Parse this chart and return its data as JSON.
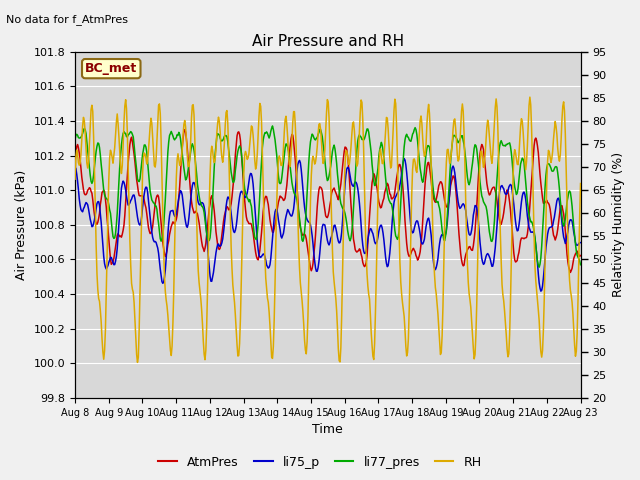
{
  "title": "Air Pressure and RH",
  "top_left_text": "No data for f_AtmPres",
  "box_label": "BC_met",
  "xlabel": "Time",
  "ylabel_left": "Air Pressure (kPa)",
  "ylabel_right": "Relativity Humidity (%)",
  "ylim_left": [
    99.8,
    101.8
  ],
  "ylim_right": [
    20,
    95
  ],
  "yticks_left": [
    99.8,
    100.0,
    100.2,
    100.4,
    100.6,
    100.8,
    101.0,
    101.2,
    101.4,
    101.6,
    101.8
  ],
  "yticks_right": [
    20,
    25,
    30,
    35,
    40,
    45,
    50,
    55,
    60,
    65,
    70,
    75,
    80,
    85,
    90,
    95
  ],
  "n_points": 600,
  "colors": {
    "AtmPres": "#cc0000",
    "li75_p": "#0000cc",
    "li77_pres": "#00aa00",
    "RH": "#ddaa00"
  },
  "legend_labels": [
    "AtmPres",
    "li75_p",
    "li77_pres",
    "RH"
  ],
  "fig_bg_color": "#f0f0f0",
  "plot_bg_color": "#d8d8d8",
  "grid_color": "#ffffff"
}
